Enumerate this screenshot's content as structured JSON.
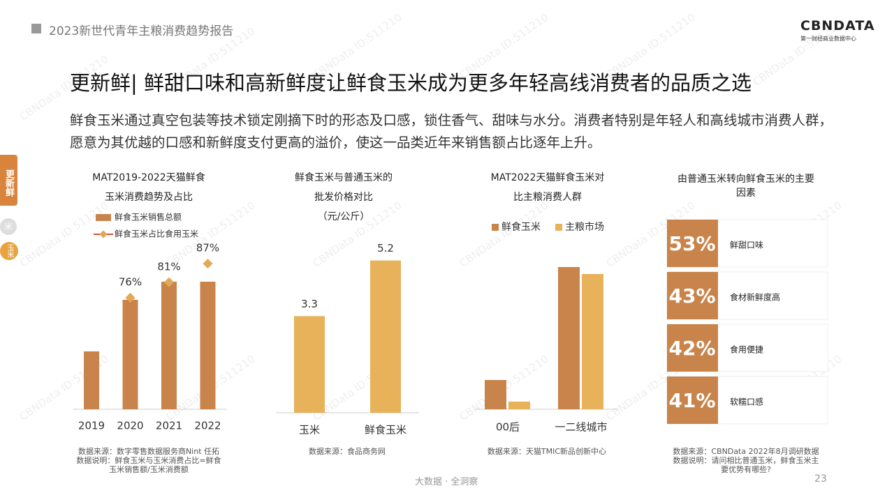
{
  "header": {
    "title": "2023新世代青年主粮消费趋势报告",
    "logo": "CBNDATA",
    "logo_sub": "第一财经商业数据中心"
  },
  "headline": "更新鲜| 鲜甜口味和高新鲜度让鲜食玉米成为更多年轻高线消费者的品质之选",
  "intro": "鲜食玉米通过真空包装等技术锁定刚摘下时的形态及口感，锁住香气、甜味与水分。消费者特别是年轻人和高线城市消费人群，愿意为其优越的口感和新鲜度支付更高的溢价，使这一品类近年来销售额占比逐年上升。",
  "side_tabs": {
    "active": "更新鲜",
    "tab2": "米",
    "tab3": "玉米"
  },
  "watermark": "CBNData ID:511210",
  "chart_data": [
    {
      "type": "combo",
      "title": [
        "MAT2019-2022天猫鲜食",
        "玉米消费趋势及占比"
      ],
      "categories": [
        "2019",
        "2020",
        "2021",
        "2022"
      ],
      "ylim": [
        0,
        200
      ],
      "y2lim": [
        40,
        85
      ],
      "series": [
        {
          "name": "鲜食玉米销售总额",
          "kind": "bar",
          "color": "#c8844a",
          "values": [
            83,
            157,
            183,
            183
          ]
        },
        {
          "name": "鲜食玉米占比食用玉米",
          "kind": "marker",
          "axis": "y2",
          "color": "#e3a857",
          "line_color": "#d9502e",
          "values": [
            null,
            76,
            81,
            87
          ],
          "value_labels": [
            null,
            "76%",
            "81%",
            "87%"
          ]
        }
      ],
      "notes": [
        "数据来源：数字零售数据服务商Nint 任拓",
        "数据说明：鲜食玉米与玉米消费占比=鲜食",
        "玉米销售额/玉米消费额"
      ]
    },
    {
      "type": "bar",
      "title": [
        "鲜食玉米与普通玉米的",
        "批发价格对比",
        "（元/公斤）"
      ],
      "categories": [
        "玉米",
        "鲜食玉米"
      ],
      "values": [
        3.3,
        5.2
      ],
      "color": "#e8b25a",
      "ylim": [
        0,
        6
      ],
      "notes": [
        "数据来源：食品商务网"
      ]
    },
    {
      "type": "grouped",
      "title": [
        "MAT2022天猫鲜食玉米对",
        "比主粮消费人群"
      ],
      "categories": [
        "00后",
        "一二线城市"
      ],
      "ylim": [
        0,
        250
      ],
      "series": [
        {
          "name": "鲜食玉米",
          "color": "#c8844a",
          "values": [
            42,
            204
          ]
        },
        {
          "name": "主粮市场",
          "color": "#e8b25a",
          "values": [
            11,
            194
          ]
        }
      ],
      "notes": [
        "数据来源：天猫TMIC新品创新中心"
      ]
    },
    {
      "type": "stat",
      "title": [
        "由普通玉米转向鲜食玉米的主要",
        "因素"
      ],
      "categories": [
        "鲜甜口味",
        "食材新鲜度高",
        "食用便捷",
        "软糯口感"
      ],
      "values": [
        53,
        43,
        42,
        41
      ],
      "value_labels": [
        "53%",
        "43%",
        "42%",
        "41%"
      ],
      "color": "#c8844a",
      "notes": [
        "数据来源：CBNData 2022年8月调研数据",
        "数据说明：请问相比普通玉米，鲜食玉米主",
        "要优势有哪些?"
      ]
    }
  ],
  "footer": "大数据 · 全洞察",
  "page_number": "23"
}
